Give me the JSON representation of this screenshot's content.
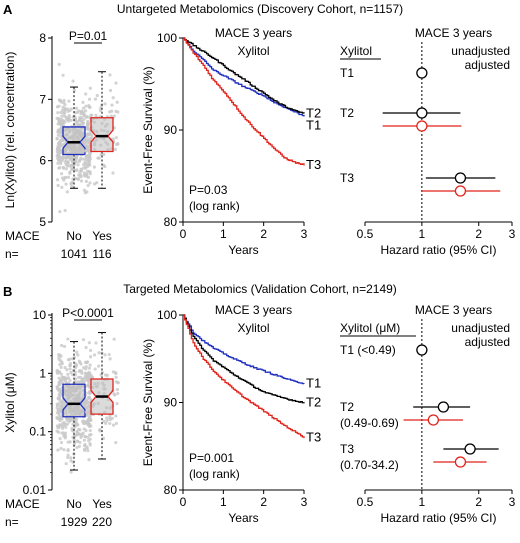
{
  "colors": {
    "black": "#000000",
    "blue": "#1f2fbf",
    "red": "#e0231b",
    "gray_box": "#bdbdbd",
    "gray_ci": "#8a8a8a",
    "scatter": "#c8c8c8"
  },
  "panels": [
    {
      "letter": "A",
      "title": "Untargeted Metabolomics (Discovery Cohort, n=1157)",
      "box": {
        "ylabel": "Ln(Xylitol) (rel. concentration)",
        "yticks": [
          "5",
          "6",
          "7",
          "8"
        ],
        "pvalue": "P=0.01",
        "mace_label": "MACE",
        "groups": [
          "No",
          "Yes"
        ],
        "n_label": "n=",
        "counts": [
          "1041",
          "116"
        ]
      },
      "km": {
        "title": "MACE 3 years",
        "subtitle": "Xylitol",
        "ylabel": "Event-Free Survival (%)",
        "xlabel": "Years",
        "yticks": [
          "80",
          "90",
          "100"
        ],
        "xticks": [
          "0",
          "1",
          "2",
          "3"
        ],
        "pvalue": "P=0.03",
        "test": "(log rank)",
        "curve_labels": [
          "T1",
          "T2",
          "T3"
        ]
      },
      "forest": {
        "title": "MACE 3 years",
        "group_header": "Xylitol",
        "legend_unadjusted": "unadjusted",
        "legend_adjusted": "adjusted",
        "rows": [
          {
            "label": "T1",
            "range": ""
          },
          {
            "label": "T2",
            "range": ""
          },
          {
            "label": "T3",
            "range": ""
          }
        ],
        "xticks": [
          "0.5",
          "1",
          "2",
          "3"
        ],
        "xlabel": "Hazard ratio (95% CI)"
      }
    },
    {
      "letter": "B",
      "title": "Targeted Metabolomics (Validation Cohort, n=2149)",
      "box": {
        "ylabel": "Xylitol (μM)",
        "yticks": [
          "0.01",
          "0.1",
          "1",
          "10"
        ],
        "pvalue": "P<0.0001",
        "mace_label": "MACE",
        "groups": [
          "No",
          "Yes"
        ],
        "n_label": "n=",
        "counts": [
          "1929",
          "220"
        ]
      },
      "km": {
        "title": "MACE 3 years",
        "subtitle": "Xylitol",
        "ylabel": "Event-Free Survival (%)",
        "xlabel": "Years",
        "yticks": [
          "80",
          "90",
          "100"
        ],
        "xticks": [
          "0",
          "1",
          "2",
          "3"
        ],
        "pvalue": "P=0.001",
        "test": "(log rank)",
        "curve_labels": [
          "T1",
          "T2",
          "T3"
        ]
      },
      "forest": {
        "title": "MACE 3 years",
        "group_header": "Xylitol (μM)",
        "legend_unadjusted": "unadjusted",
        "legend_adjusted": "adjusted",
        "rows": [
          {
            "label": "T1",
            "range": "(<0.49)"
          },
          {
            "label": "T2",
            "range": "(0.49-0.69)"
          },
          {
            "label": "T3",
            "range": "(0.70-34.2)"
          }
        ],
        "xticks": [
          "0.5",
          "1",
          "2",
          "3"
        ],
        "xlabel": "Hazard ratio (95% CI)"
      }
    }
  ],
  "chart_data": [
    {
      "type": "box",
      "panel": "A",
      "categories": [
        "No",
        "Yes"
      ],
      "ylim": [
        5,
        8
      ],
      "series": [
        {
          "category": "No",
          "whisker_low": 5.55,
          "q1": 6.1,
          "median": 6.3,
          "q3": 6.55,
          "whisker_high": 7.2,
          "color": "#1f2fbf"
        },
        {
          "category": "Yes",
          "whisker_low": 5.55,
          "q1": 6.15,
          "median": 6.4,
          "q3": 6.7,
          "whisker_high": 7.45,
          "color": "#e0231b"
        }
      ]
    },
    {
      "type": "line",
      "panel": "A",
      "xlim": [
        0,
        3
      ],
      "ylim": [
        80,
        100
      ],
      "series": [
        {
          "name": "T1",
          "color": "#1f2fbf",
          "x": [
            0,
            0.25,
            0.5,
            0.75,
            1.0,
            1.25,
            1.5,
            1.75,
            2.0,
            2.25,
            2.5,
            2.75,
            3.0
          ],
          "y": [
            100,
            98.6,
            97.6,
            96.5,
            95.9,
            95.3,
            94.7,
            94.2,
            93.7,
            93.0,
            92.5,
            92.0,
            91.5
          ]
        },
        {
          "name": "T2",
          "color": "#000000",
          "x": [
            0,
            0.25,
            0.5,
            0.75,
            1.0,
            1.25,
            1.5,
            1.75,
            2.0,
            2.25,
            2.5,
            2.75,
            3.0
          ],
          "y": [
            100,
            99.2,
            98.5,
            97.8,
            97.0,
            96.2,
            95.5,
            94.7,
            94.0,
            93.2,
            92.6,
            92.1,
            91.8
          ]
        },
        {
          "name": "T3",
          "color": "#e0231b",
          "x": [
            0,
            0.25,
            0.5,
            0.75,
            1.0,
            1.25,
            1.5,
            1.75,
            2.0,
            2.25,
            2.5,
            2.75,
            3.0
          ],
          "y": [
            100,
            98.4,
            97.0,
            95.4,
            94.2,
            92.8,
            91.4,
            90.2,
            89.1,
            88.0,
            87.0,
            86.5,
            86.2
          ]
        }
      ]
    },
    {
      "type": "forest",
      "panel": "A",
      "xlim": [
        0.5,
        3
      ],
      "xscale": "log",
      "reference": 1,
      "rows": [
        {
          "label": "T1",
          "unadjusted": {
            "hr": 1.0,
            "low": 1.0,
            "high": 1.0
          },
          "adjusted": null
        },
        {
          "label": "T2",
          "unadjusted": {
            "hr": 1.0,
            "low": 0.62,
            "high": 1.6
          },
          "adjusted": {
            "hr": 1.0,
            "low": 0.62,
            "high": 1.62
          }
        },
        {
          "label": "T3",
          "unadjusted": {
            "hr": 1.6,
            "low": 1.05,
            "high": 2.45
          },
          "adjusted": {
            "hr": 1.6,
            "low": 1.0,
            "high": 2.6
          }
        }
      ]
    },
    {
      "type": "box",
      "panel": "B",
      "categories": [
        "No",
        "Yes"
      ],
      "yscale": "log",
      "ylim": [
        0.01,
        10
      ],
      "series": [
        {
          "category": "No",
          "whisker_low": 0.022,
          "q1": 0.18,
          "median": 0.3,
          "q3": 0.65,
          "whisker_high": 3.5,
          "color": "#1f2fbf"
        },
        {
          "category": "Yes",
          "whisker_low": 0.034,
          "q1": 0.2,
          "median": 0.4,
          "q3": 0.8,
          "whisker_high": 5.0,
          "color": "#e0231b"
        }
      ]
    },
    {
      "type": "line",
      "panel": "B",
      "xlim": [
        0,
        3
      ],
      "ylim": [
        80,
        100
      ],
      "series": [
        {
          "name": "T1",
          "color": "#1f2fbf",
          "x": [
            0,
            0.25,
            0.5,
            0.75,
            1.0,
            1.25,
            1.5,
            1.75,
            2.0,
            2.25,
            2.5,
            2.75,
            3.0
          ],
          "y": [
            100,
            98.0,
            97.0,
            96.2,
            95.6,
            95.0,
            94.5,
            94.0,
            93.6,
            93.2,
            92.8,
            92.4,
            92.2
          ]
        },
        {
          "name": "T2",
          "color": "#000000",
          "x": [
            0,
            0.25,
            0.5,
            0.75,
            1.0,
            1.25,
            1.5,
            1.75,
            2.0,
            2.25,
            2.5,
            2.75,
            3.0
          ],
          "y": [
            100,
            97.5,
            96.0,
            94.8,
            94.0,
            93.2,
            92.5,
            91.8,
            91.2,
            90.8,
            90.5,
            90.2,
            90.0
          ]
        },
        {
          "name": "T3",
          "color": "#e0231b",
          "x": [
            0,
            0.25,
            0.5,
            0.75,
            1.0,
            1.25,
            1.5,
            1.75,
            2.0,
            2.25,
            2.5,
            2.75,
            3.0
          ],
          "y": [
            100,
            96.8,
            95.0,
            93.6,
            92.5,
            91.5,
            90.6,
            89.8,
            89.0,
            88.2,
            87.4,
            86.7,
            86.0
          ]
        }
      ]
    },
    {
      "type": "forest",
      "panel": "B",
      "xlim": [
        0.5,
        3
      ],
      "xscale": "log",
      "reference": 1,
      "rows": [
        {
          "label": "T1",
          "unadjusted": {
            "hr": 1.0,
            "low": 1.0,
            "high": 1.0
          },
          "adjusted": null
        },
        {
          "label": "T2",
          "unadjusted": {
            "hr": 1.3,
            "low": 0.9,
            "high": 1.8
          },
          "adjusted": {
            "hr": 1.15,
            "low": 0.8,
            "high": 1.65
          }
        },
        {
          "label": "T3",
          "unadjusted": {
            "hr": 1.8,
            "low": 1.3,
            "high": 2.55
          },
          "adjusted": {
            "hr": 1.6,
            "low": 1.15,
            "high": 2.2
          }
        }
      ]
    }
  ]
}
